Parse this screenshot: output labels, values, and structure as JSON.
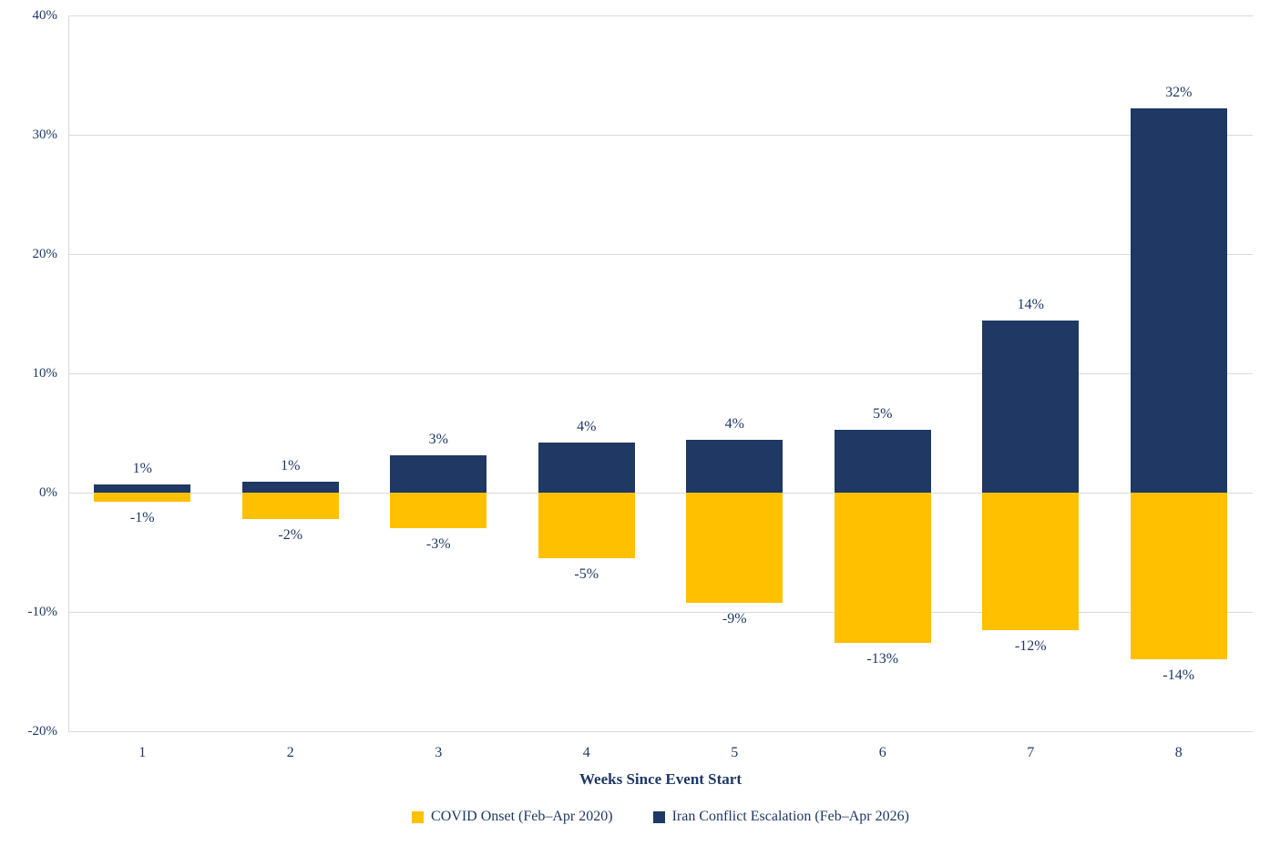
{
  "chart_data": {
    "type": "bar",
    "title": "",
    "xlabel": "Weeks Since Event Start",
    "ylabel": "",
    "ylim": [
      -20,
      40
    ],
    "yticks": [
      40,
      30,
      20,
      10,
      0,
      -10,
      -20
    ],
    "ytick_labels": [
      "40%",
      "30%",
      "20%",
      "10%",
      "0%",
      "-10%",
      "-20%"
    ],
    "categories": [
      "1",
      "2",
      "3",
      "4",
      "5",
      "6",
      "7",
      "8"
    ],
    "series": [
      {
        "name": "COVID Onset (Feb–Apr 2020)",
        "color": "#FFC000",
        "values": [
          -0.8,
          -2.2,
          -3.0,
          -5.5,
          -9.2,
          -12.6,
          -11.5,
          -14.0
        ],
        "labels": [
          "-1%",
          "-2%",
          "-3%",
          "-5%",
          "-9%",
          "-13%",
          "-12%",
          "-14%"
        ]
      },
      {
        "name": "Iran Conflict Escalation (Feb–Apr 2026)",
        "color": "#1F3864",
        "values": [
          0.7,
          0.9,
          3.1,
          4.2,
          4.4,
          5.3,
          14.4,
          32.2
        ],
        "labels": [
          "1%",
          "1%",
          "3%",
          "4%",
          "4%",
          "5%",
          "14%",
          "32%"
        ]
      }
    ],
    "grid": true,
    "legend_position": "bottom",
    "text_color": "#1F3864",
    "gridline_color": "#D9D9D9"
  }
}
